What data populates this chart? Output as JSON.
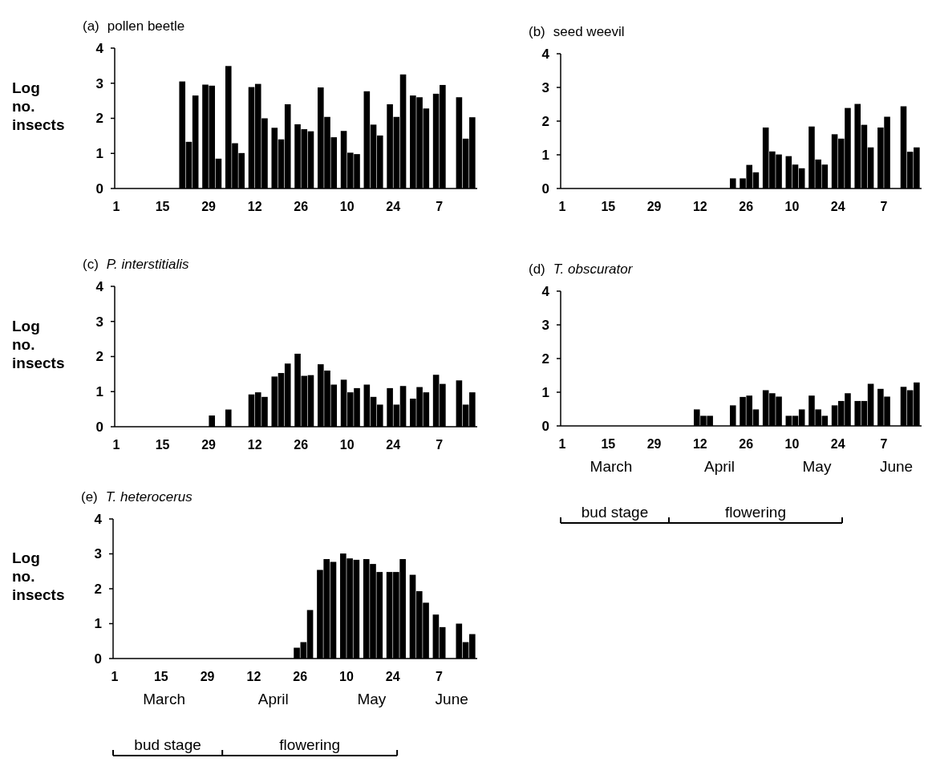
{
  "chart_data": [
    {
      "type": "bar",
      "title": "(a) pollen beetle",
      "ylabel": "Log no. insects",
      "color": "#000000",
      "ylim": [
        0,
        4
      ],
      "yticks": [
        0,
        1,
        2,
        3,
        4
      ],
      "categories": [
        "1",
        null,
        null,
        null,
        null,
        null,
        null,
        null,
        null,
        null,
        null,
        null,
        null,
        null,
        "15",
        null,
        null,
        null,
        null,
        null,
        null,
        null,
        null,
        null,
        null,
        null,
        null,
        null,
        "29",
        null,
        null,
        null,
        null,
        null,
        null,
        null,
        null,
        null,
        null,
        null,
        null,
        null,
        "12",
        null,
        null,
        null,
        null,
        null,
        null,
        null,
        null,
        null,
        null,
        null,
        null,
        null,
        "26",
        null,
        null,
        null,
        null,
        null,
        null,
        null,
        null,
        null,
        null,
        null,
        null,
        null,
        "10",
        null,
        null,
        null,
        null,
        null,
        null,
        null,
        null,
        null,
        null,
        null,
        null,
        null,
        "24",
        null,
        null,
        null,
        null,
        null,
        null,
        null,
        null,
        null,
        null,
        null,
        null,
        null,
        "7",
        null,
        null,
        null,
        null,
        null,
        null,
        null,
        null,
        null,
        null,
        null
      ],
      "values": [
        null,
        null,
        null,
        null,
        null,
        null,
        null,
        null,
        null,
        null,
        null,
        null,
        null,
        null,
        null,
        null,
        null,
        null,
        null,
        null,
        3.05,
        null,
        1.33,
        null,
        2.65,
        null,
        null,
        2.96,
        null,
        2.93,
        null,
        0.85,
        null,
        null,
        3.49,
        null,
        1.29,
        null,
        1.01,
        null,
        null,
        2.89,
        null,
        2.98,
        null,
        2.0,
        null,
        null,
        1.73,
        null,
        1.4,
        null,
        2.4,
        null,
        null,
        1.83,
        null,
        1.69,
        null,
        1.63,
        null,
        null,
        2.88,
        null,
        2.04,
        null,
        1.46,
        null,
        null,
        1.64,
        null,
        1.02,
        null,
        0.98,
        null,
        null,
        2.77,
        null,
        1.82,
        null,
        1.51,
        null,
        null,
        2.4,
        null,
        2.04,
        null,
        3.25,
        null,
        null,
        2.65,
        null,
        2.6,
        null,
        2.28,
        null,
        null,
        2.7,
        null,
        2.95,
        null,
        null,
        null,
        null,
        2.6,
        null,
        1.42,
        null,
        2.03,
        null
      ]
    },
    {
      "type": "bar",
      "title": "(b) seed weevil",
      "color": "#000000",
      "ylim": [
        0,
        4
      ],
      "yticks": [
        0,
        1,
        2,
        3,
        4
      ],
      "categories": [
        "1",
        null,
        null,
        null,
        null,
        null,
        null,
        null,
        null,
        null,
        null,
        null,
        null,
        null,
        "15",
        null,
        null,
        null,
        null,
        null,
        null,
        null,
        null,
        null,
        null,
        null,
        null,
        null,
        "29",
        null,
        null,
        null,
        null,
        null,
        null,
        null,
        null,
        null,
        null,
        null,
        null,
        null,
        "12",
        null,
        null,
        null,
        null,
        null,
        null,
        null,
        null,
        null,
        null,
        null,
        null,
        null,
        "26",
        null,
        null,
        null,
        null,
        null,
        null,
        null,
        null,
        null,
        null,
        null,
        null,
        null,
        "10",
        null,
        null,
        null,
        null,
        null,
        null,
        null,
        null,
        null,
        null,
        null,
        null,
        null,
        "24",
        null,
        null,
        null,
        null,
        null,
        null,
        null,
        null,
        null,
        null,
        null,
        null,
        null,
        "7",
        null,
        null,
        null,
        null,
        null,
        null,
        null,
        null,
        null,
        null,
        null
      ],
      "values": [
        null,
        null,
        null,
        null,
        null,
        null,
        null,
        null,
        null,
        null,
        null,
        null,
        null,
        null,
        null,
        null,
        null,
        null,
        null,
        null,
        null,
        null,
        null,
        null,
        null,
        null,
        null,
        null,
        null,
        null,
        null,
        null,
        null,
        null,
        null,
        null,
        null,
        null,
        null,
        null,
        null,
        null,
        null,
        null,
        null,
        null,
        null,
        null,
        null,
        null,
        null,
        null,
        0.3,
        null,
        null,
        0.3,
        null,
        0.7,
        null,
        0.48,
        null,
        null,
        1.81,
        null,
        1.1,
        null,
        1.01,
        null,
        null,
        0.96,
        null,
        0.71,
        null,
        0.6,
        null,
        null,
        1.84,
        null,
        0.86,
        null,
        0.71,
        null,
        null,
        1.61,
        null,
        1.48,
        null,
        2.39,
        null,
        null,
        2.51,
        null,
        1.89,
        null,
        1.22,
        null,
        null,
        1.81,
        null,
        2.13,
        null,
        null,
        null,
        null,
        2.44,
        null,
        1.09,
        null,
        1.22,
        null
      ]
    },
    {
      "type": "bar",
      "title": "(c) P. interstitialis",
      "ylabel": "Log no. insects",
      "color": "#000000",
      "ylim": [
        0,
        4
      ],
      "yticks": [
        0,
        1,
        2,
        3,
        4
      ],
      "categories": [
        "1",
        null,
        null,
        null,
        null,
        null,
        null,
        null,
        null,
        null,
        null,
        null,
        null,
        null,
        "15",
        null,
        null,
        null,
        null,
        null,
        null,
        null,
        null,
        null,
        null,
        null,
        null,
        null,
        "29",
        null,
        null,
        null,
        null,
        null,
        null,
        null,
        null,
        null,
        null,
        null,
        null,
        null,
        "12",
        null,
        null,
        null,
        null,
        null,
        null,
        null,
        null,
        null,
        null,
        null,
        null,
        null,
        "26",
        null,
        null,
        null,
        null,
        null,
        null,
        null,
        null,
        null,
        null,
        null,
        null,
        null,
        "10",
        null,
        null,
        null,
        null,
        null,
        null,
        null,
        null,
        null,
        null,
        null,
        null,
        null,
        "24",
        null,
        null,
        null,
        null,
        null,
        null,
        null,
        null,
        null,
        null,
        null,
        null,
        null,
        "7",
        null,
        null,
        null,
        null,
        null,
        null,
        null,
        null,
        null,
        null,
        null
      ],
      "values": [
        null,
        null,
        null,
        null,
        null,
        null,
        null,
        null,
        null,
        null,
        null,
        null,
        null,
        null,
        null,
        null,
        null,
        null,
        null,
        null,
        null,
        null,
        null,
        null,
        null,
        null,
        null,
        null,
        null,
        0.32,
        null,
        null,
        null,
        null,
        0.49,
        null,
        null,
        null,
        null,
        null,
        null,
        0.92,
        null,
        0.98,
        null,
        0.85,
        null,
        null,
        1.43,
        null,
        1.53,
        null,
        1.8,
        null,
        null,
        2.08,
        null,
        1.45,
        null,
        1.47,
        null,
        null,
        1.78,
        null,
        1.6,
        null,
        1.2,
        null,
        null,
        1.34,
        null,
        0.98,
        null,
        1.1,
        null,
        null,
        1.2,
        null,
        0.85,
        null,
        0.63,
        null,
        null,
        1.1,
        null,
        0.63,
        null,
        1.16,
        null,
        null,
        0.8,
        null,
        1.13,
        null,
        0.98,
        null,
        null,
        1.48,
        null,
        1.22,
        null,
        null,
        null,
        null,
        1.32,
        null,
        0.63,
        null,
        0.98,
        null
      ]
    },
    {
      "type": "bar",
      "title": "(d) T. obscurator",
      "color": "#000000",
      "ylim": [
        0,
        4
      ],
      "yticks": [
        0,
        1,
        2,
        3,
        4
      ],
      "categories": [
        "1",
        null,
        null,
        null,
        null,
        null,
        null,
        null,
        null,
        null,
        null,
        null,
        null,
        null,
        "15",
        null,
        null,
        null,
        null,
        null,
        null,
        null,
        null,
        null,
        null,
        null,
        null,
        null,
        "29",
        null,
        null,
        null,
        null,
        null,
        null,
        null,
        null,
        null,
        null,
        null,
        null,
        null,
        "12",
        null,
        null,
        null,
        null,
        null,
        null,
        null,
        null,
        null,
        null,
        null,
        null,
        null,
        "26",
        null,
        null,
        null,
        null,
        null,
        null,
        null,
        null,
        null,
        null,
        null,
        null,
        null,
        "10",
        null,
        null,
        null,
        null,
        null,
        null,
        null,
        null,
        null,
        null,
        null,
        null,
        null,
        "24",
        null,
        null,
        null,
        null,
        null,
        null,
        null,
        null,
        null,
        null,
        null,
        null,
        null,
        "7",
        null,
        null,
        null,
        null,
        null,
        null,
        null,
        null,
        null,
        null,
        null
      ],
      "values": [
        null,
        null,
        null,
        null,
        null,
        null,
        null,
        null,
        null,
        null,
        null,
        null,
        null,
        null,
        null,
        null,
        null,
        null,
        null,
        null,
        null,
        null,
        null,
        null,
        null,
        null,
        null,
        null,
        null,
        null,
        null,
        null,
        null,
        null,
        null,
        null,
        null,
        null,
        null,
        null,
        null,
        0.49,
        null,
        0.3,
        null,
        0.3,
        null,
        null,
        null,
        null,
        null,
        null,
        0.61,
        null,
        null,
        0.86,
        null,
        0.9,
        null,
        0.49,
        null,
        null,
        1.06,
        null,
        0.97,
        null,
        0.87,
        null,
        null,
        0.3,
        null,
        0.3,
        null,
        0.49,
        null,
        null,
        0.9,
        null,
        0.49,
        null,
        0.3,
        null,
        null,
        0.61,
        null,
        0.74,
        null,
        0.97,
        null,
        null,
        0.74,
        null,
        0.74,
        null,
        1.25,
        null,
        null,
        1.1,
        null,
        0.87,
        null,
        null,
        null,
        null,
        1.16,
        null,
        1.06,
        null,
        1.29,
        null
      ],
      "annotations": [
        "March",
        "April",
        "May",
        "June",
        "bud stage",
        "flowering"
      ]
    },
    {
      "type": "bar",
      "title": "(e) T. heterocerus",
      "ylabel": "Log no. insects",
      "color": "#000000",
      "ylim": [
        0,
        4
      ],
      "yticks": [
        0,
        1,
        2,
        3,
        4
      ],
      "categories": [
        "1",
        null,
        null,
        null,
        null,
        null,
        null,
        null,
        null,
        null,
        null,
        null,
        null,
        null,
        "15",
        null,
        null,
        null,
        null,
        null,
        null,
        null,
        null,
        null,
        null,
        null,
        null,
        null,
        "29",
        null,
        null,
        null,
        null,
        null,
        null,
        null,
        null,
        null,
        null,
        null,
        null,
        null,
        "12",
        null,
        null,
        null,
        null,
        null,
        null,
        null,
        null,
        null,
        null,
        null,
        null,
        null,
        "26",
        null,
        null,
        null,
        null,
        null,
        null,
        null,
        null,
        null,
        null,
        null,
        null,
        null,
        "10",
        null,
        null,
        null,
        null,
        null,
        null,
        null,
        null,
        null,
        null,
        null,
        null,
        null,
        "24",
        null,
        null,
        null,
        null,
        null,
        null,
        null,
        null,
        null,
        null,
        null,
        null,
        null,
        "7",
        null,
        null,
        null,
        null,
        null,
        null,
        null,
        null,
        null,
        null,
        null
      ],
      "values": [
        null,
        null,
        null,
        null,
        null,
        null,
        null,
        null,
        null,
        null,
        null,
        null,
        null,
        null,
        null,
        null,
        null,
        null,
        null,
        null,
        null,
        null,
        null,
        null,
        null,
        null,
        null,
        null,
        null,
        null,
        null,
        null,
        null,
        null,
        null,
        null,
        null,
        null,
        null,
        null,
        null,
        null,
        null,
        null,
        null,
        null,
        null,
        null,
        null,
        null,
        null,
        null,
        null,
        null,
        null,
        0.31,
        null,
        0.47,
        null,
        1.39,
        null,
        null,
        2.54,
        null,
        2.85,
        null,
        2.77,
        null,
        null,
        3.01,
        null,
        2.87,
        null,
        2.83,
        null,
        null,
        2.85,
        null,
        2.71,
        null,
        2.48,
        null,
        null,
        2.48,
        null,
        2.48,
        null,
        2.85,
        null,
        null,
        2.4,
        null,
        1.93,
        null,
        1.6,
        null,
        null,
        1.26,
        null,
        0.9,
        null,
        null,
        null,
        null,
        1.0,
        null,
        0.47,
        null,
        0.7,
        null
      ],
      "annotations": [
        "March",
        "April",
        "May",
        "June",
        "bud stage",
        "flowering"
      ]
    }
  ]
}
